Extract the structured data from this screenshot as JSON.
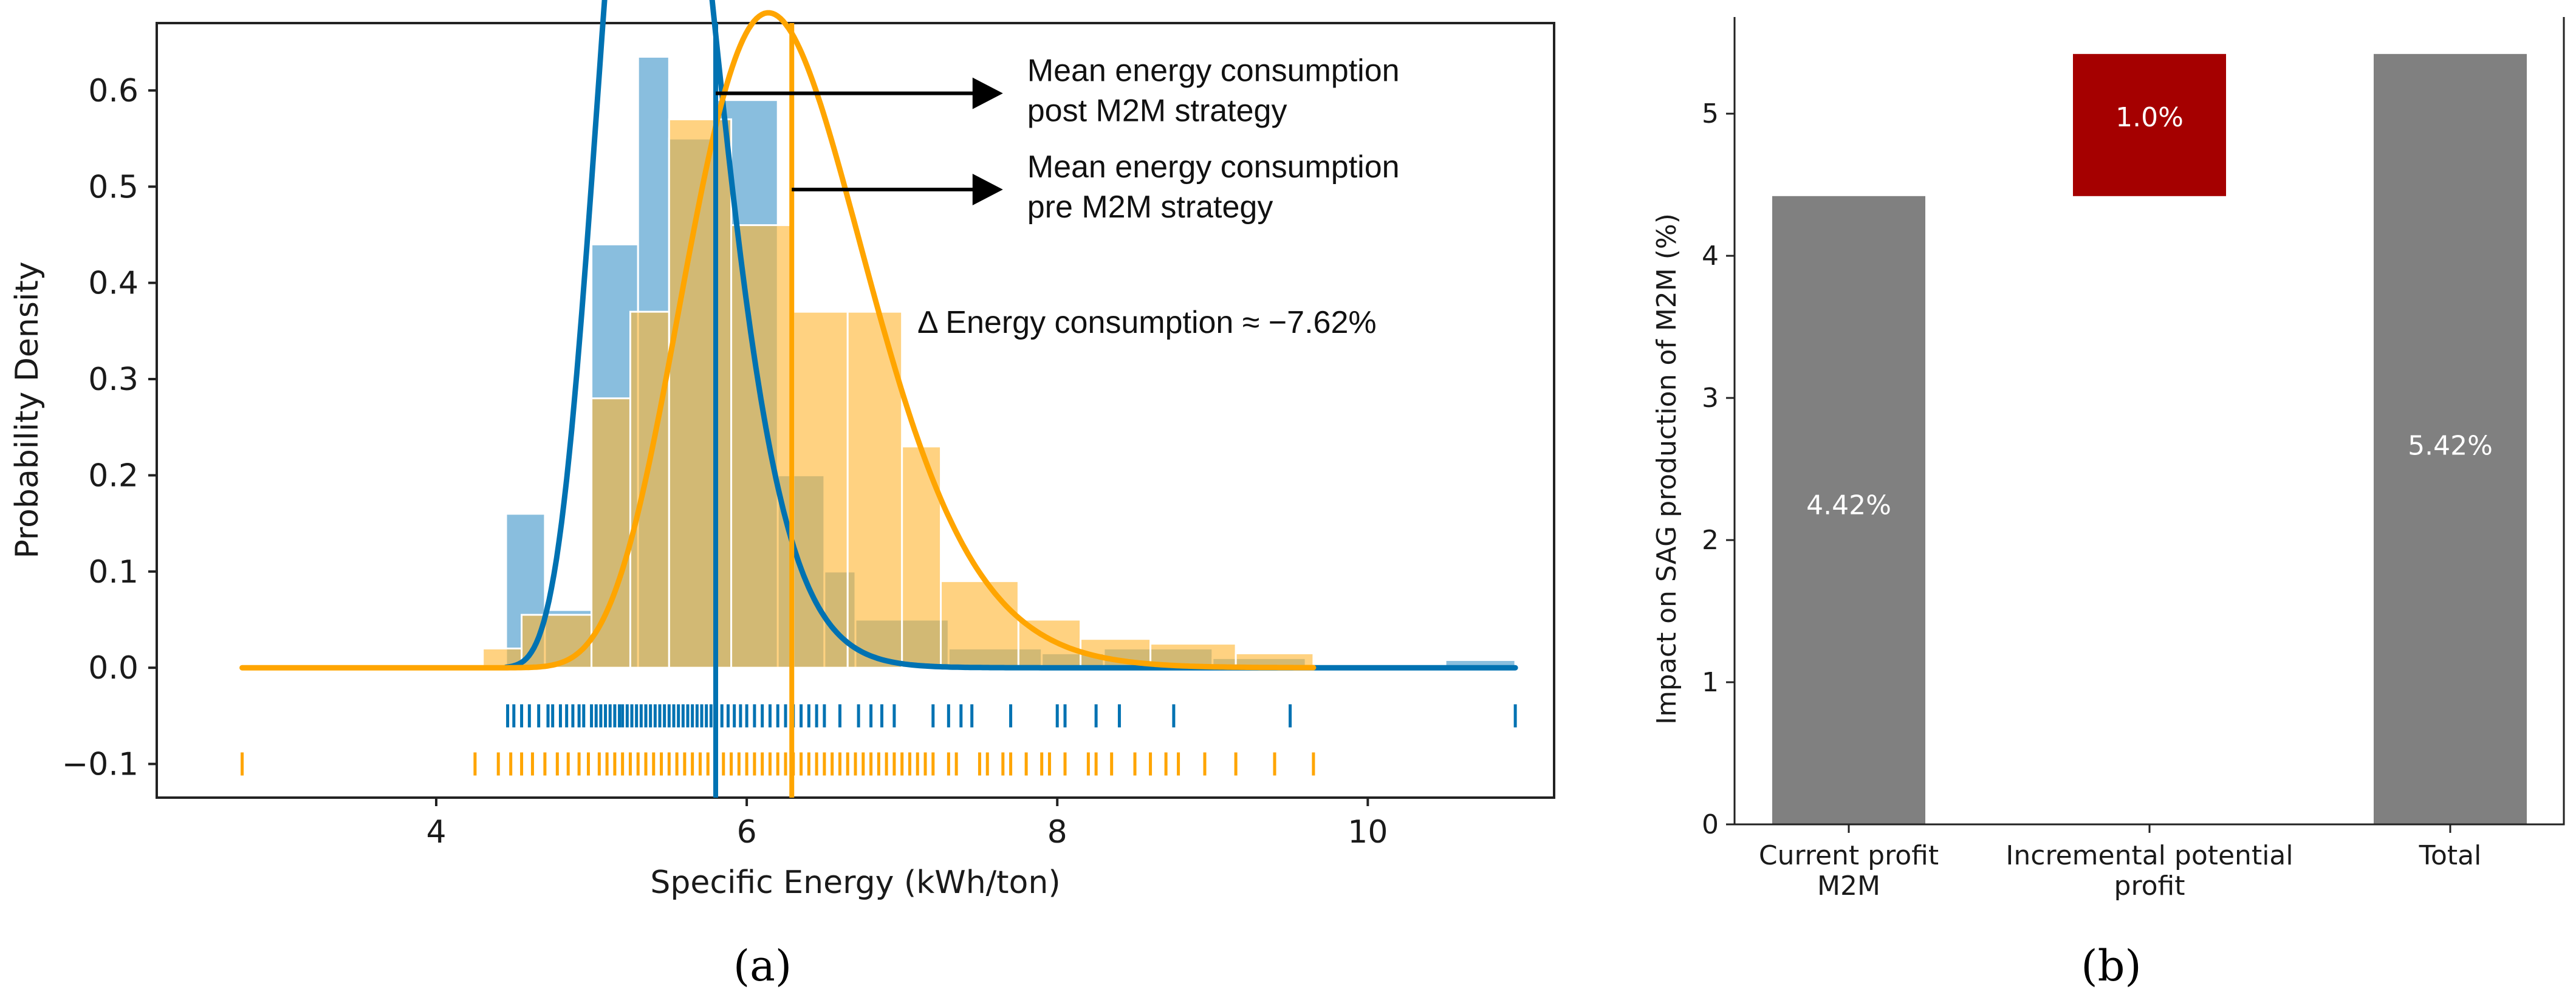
{
  "colors": {
    "post": "#0072B2",
    "post_hist": "#6BAED6",
    "pre": "#FFA500",
    "pre_hist": "#FFC04D",
    "bar_gray": "#808080",
    "bar_red": "#A50000"
  },
  "chart_data": [
    {
      "type": "histogram",
      "panel_label": "(a)",
      "xlabel": "Specific Energy (kWh/ton)",
      "ylabel": "Probability Density",
      "xlim": [
        2.2,
        11.2
      ],
      "ylim": [
        -0.135,
        0.67
      ],
      "xticks": [
        4,
        6,
        8,
        10
      ],
      "yticks": [
        -0.1,
        0.0,
        0.1,
        0.2,
        0.3,
        0.4,
        0.5,
        0.6
      ],
      "ytick_labels": [
        "−0.1",
        "0.0",
        "0.1",
        "0.2",
        "0.3",
        "0.4",
        "0.5",
        "0.6"
      ],
      "series": [
        {
          "name": "post M2M",
          "color_key": "post",
          "hist": [
            {
              "x0": 4.45,
              "x1": 4.7,
              "y": 0.16
            },
            {
              "x0": 4.7,
              "x1": 5.0,
              "y": 0.06
            },
            {
              "x0": 5.0,
              "x1": 5.3,
              "y": 0.44
            },
            {
              "x0": 5.3,
              "x1": 5.5,
              "y": 0.635
            },
            {
              "x0": 5.5,
              "x1": 5.8,
              "y": 0.55
            },
            {
              "x0": 5.8,
              "x1": 6.2,
              "y": 0.59
            },
            {
              "x0": 6.2,
              "x1": 6.5,
              "y": 0.2
            },
            {
              "x0": 6.5,
              "x1": 6.7,
              "y": 0.1
            },
            {
              "x0": 6.7,
              "x1": 7.3,
              "y": 0.05
            },
            {
              "x0": 7.3,
              "x1": 7.9,
              "y": 0.02
            },
            {
              "x0": 7.9,
              "x1": 8.3,
              "y": 0.015
            },
            {
              "x0": 8.3,
              "x1": 9.0,
              "y": 0.02
            },
            {
              "x0": 9.0,
              "x1": 9.6,
              "y": 0.01
            },
            {
              "x0": 10.5,
              "x1": 10.95,
              "y": 0.008
            }
          ],
          "kde": {
            "type": "gamma",
            "shape": 14.0,
            "scale": 0.1,
            "loc": 4.1,
            "x_start": 4.45,
            "x_end": 10.95
          },
          "rug_y": -0.05,
          "rug": [
            4.46,
            4.5,
            4.55,
            4.6,
            4.66,
            4.72,
            4.75,
            4.8,
            4.84,
            4.88,
            4.92,
            4.95,
            5.0,
            5.03,
            5.06,
            5.09,
            5.12,
            5.15,
            5.18,
            5.2,
            5.23,
            5.26,
            5.29,
            5.32,
            5.35,
            5.38,
            5.41,
            5.44,
            5.47,
            5.5,
            5.53,
            5.56,
            5.59,
            5.62,
            5.65,
            5.68,
            5.71,
            5.74,
            5.77,
            5.8,
            5.84,
            5.88,
            5.92,
            5.96,
            6.0,
            6.05,
            6.1,
            6.15,
            6.2,
            6.25,
            6.3,
            6.35,
            6.4,
            6.45,
            6.5,
            6.6,
            6.72,
            6.8,
            6.87,
            6.95,
            7.2,
            7.3,
            7.38,
            7.45,
            7.7,
            8.0,
            8.05,
            8.25,
            8.4,
            8.75,
            9.5,
            10.95
          ],
          "mean": 5.8
        },
        {
          "name": "pre M2M",
          "color_key": "pre",
          "hist": [
            {
              "x0": 4.3,
              "x1": 4.55,
              "y": 0.02
            },
            {
              "x0": 4.55,
              "x1": 5.0,
              "y": 0.055
            },
            {
              "x0": 5.0,
              "x1": 5.25,
              "y": 0.28
            },
            {
              "x0": 5.25,
              "x1": 5.5,
              "y": 0.37
            },
            {
              "x0": 5.5,
              "x1": 5.9,
              "y": 0.57
            },
            {
              "x0": 5.9,
              "x1": 6.3,
              "y": 0.46
            },
            {
              "x0": 6.3,
              "x1": 6.65,
              "y": 0.37
            },
            {
              "x0": 6.65,
              "x1": 7.0,
              "y": 0.37
            },
            {
              "x0": 7.0,
              "x1": 7.25,
              "y": 0.23
            },
            {
              "x0": 7.25,
              "x1": 7.75,
              "y": 0.09
            },
            {
              "x0": 7.75,
              "x1": 8.15,
              "y": 0.05
            },
            {
              "x0": 8.15,
              "x1": 8.6,
              "y": 0.03
            },
            {
              "x0": 8.6,
              "x1": 9.15,
              "y": 0.025
            },
            {
              "x0": 9.15,
              "x1": 9.65,
              "y": 0.015
            }
          ],
          "kde": {
            "type": "gamma",
            "shape": 14.0,
            "scale": 0.1615,
            "loc": 4.04,
            "x_start": 2.75,
            "x_end": 9.65
          },
          "rug_y": -0.1,
          "rug": [
            2.75,
            4.25,
            4.4,
            4.48,
            4.55,
            4.62,
            4.7,
            4.78,
            4.85,
            4.92,
            4.98,
            5.05,
            5.1,
            5.15,
            5.2,
            5.25,
            5.3,
            5.35,
            5.4,
            5.45,
            5.5,
            5.55,
            5.6,
            5.65,
            5.7,
            5.75,
            5.8,
            5.85,
            5.9,
            5.95,
            6.0,
            6.05,
            6.1,
            6.15,
            6.2,
            6.25,
            6.3,
            6.35,
            6.4,
            6.45,
            6.5,
            6.55,
            6.6,
            6.65,
            6.7,
            6.75,
            6.8,
            6.85,
            6.9,
            6.95,
            7.0,
            7.05,
            7.1,
            7.15,
            7.2,
            7.3,
            7.35,
            7.5,
            7.55,
            7.65,
            7.7,
            7.8,
            7.9,
            7.95,
            8.05,
            8.2,
            8.25,
            8.35,
            8.5,
            8.6,
            8.7,
            8.78,
            8.95,
            9.15,
            9.4,
            9.65
          ],
          "mean": 6.29
        }
      ],
      "annotations": [
        {
          "line1": "Mean energy consumption",
          "line2": "post M2M strategy",
          "from_x": 5.8,
          "to_x": 7.65,
          "y": 0.597
        },
        {
          "line1": "Mean energy consumption",
          "line2": "pre M2M strategy",
          "from_x": 6.29,
          "to_x": 7.65,
          "y": 0.497
        }
      ],
      "delta_text": "Δ Energy consumption ≈  −7.62%"
    },
    {
      "type": "bar",
      "panel_label": "(b)",
      "ylabel": "Impact on SAG production of M2M (%)",
      "ylim": [
        0,
        5.68
      ],
      "yticks": [
        0,
        1,
        2,
        3,
        4,
        5
      ],
      "categories": [
        "Current profit\nM2M",
        "Incremental potential\nprofit",
        "Total"
      ],
      "bars": [
        {
          "bottom": 0,
          "value": 4.42,
          "label": "4.42%",
          "color_key": "bar_gray",
          "label_y": 2.25
        },
        {
          "bottom": 4.42,
          "value": 1.0,
          "label": "1.0%",
          "color_key": "bar_red",
          "label_y": 4.98
        },
        {
          "bottom": 0,
          "value": 5.42,
          "label": "5.42%",
          "color_key": "bar_gray",
          "label_y": 2.67
        }
      ]
    }
  ]
}
